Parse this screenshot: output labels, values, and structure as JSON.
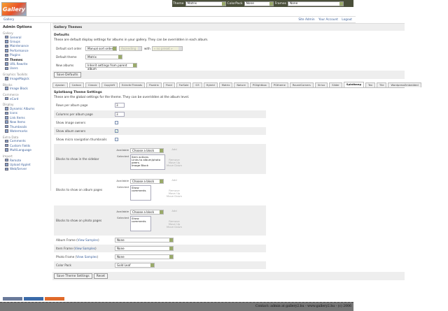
{
  "topbar": {
    "theme_label": "Theme",
    "theme_value": "Matrix",
    "colorpack_label": "ColorPack",
    "colorpack_value": "None",
    "frames_label": "Frames",
    "frames_value": "None"
  },
  "logo": "Gallery",
  "breadcrumb": {
    "home": "Gallery",
    "links": [
      "Site Admin",
      "Your Account",
      "Logout"
    ]
  },
  "sidebar": {
    "title": "Admin Options",
    "groups": [
      {
        "label": "Gallery",
        "items": [
          "General",
          "Groups",
          "Maintenance",
          "Performance",
          "Plugins",
          "Themes",
          "URL Rewrite",
          "Users"
        ]
      },
      {
        "label": "Graphics Toolkits",
        "items": [
          "ImageMagick"
        ]
      },
      {
        "label": "Blocks",
        "items": [
          "Image Block"
        ]
      },
      {
        "label": "Commerce",
        "items": [
          "eCard"
        ]
      },
      {
        "label": "Display",
        "items": [
          "Dynamic Albums",
          "Icons",
          "Link Items",
          "New Items",
          "Thumbnails",
          "Watermarks"
        ]
      },
      {
        "label": "Extra Data",
        "items": [
          "Comments",
          "Custom Fields",
          "MultiLanguage"
        ]
      },
      {
        "label": "Import",
        "items": [
          "Remote",
          "Upload Applet",
          "Web/Server"
        ]
      }
    ],
    "current": "Themes"
  },
  "main": {
    "title": "Gallery Themes",
    "defaults_heading": "Defaults",
    "defaults_desc": "These are default display settings for albums in your gallery. They can be overridden in each album.",
    "sort_label": "Default sort order",
    "sort_value": "Manual sort order",
    "sort_dir": "Ascending",
    "with_label": "with",
    "preset": "« no preset »",
    "theme_label": "Default theme",
    "theme_value": "Matrix",
    "new_label": "New albums",
    "new_value": "Inherit settings from parent album",
    "save_defaults": "Save Defaults",
    "tabs": [
      "Ajaxian",
      "Carbon",
      "Classic",
      "Copyleft",
      "EclecticThreads",
      "Floatrix",
      "Fluid",
      "ForSale",
      "G3",
      "Hybrid",
      "Matrix",
      "Nature",
      "PGlightbox",
      "PGtheme",
      "RoundCorners",
      "Siriux",
      "Slider",
      "Splatbang",
      "Tex",
      "Tile",
      "WordpressEmbedded"
    ],
    "active_tab": "Splatbang",
    "settings_heading": "Splatbang Theme Settings",
    "settings_desc": "These are the global settings for the theme. They can be overridden at the album level.",
    "rows_label": "Rows per album page",
    "rows_value": "3",
    "cols_label": "Columns per album page",
    "cols_value": "3",
    "image_owners_label": "Show image owners",
    "image_owners": false,
    "album_owners_label": "Show album owners",
    "album_owners": true,
    "micro_label": "Show micro navigation thumbnails",
    "micro": false,
    "blocks": [
      {
        "label": "Blocks to show in the sidebar",
        "selected": [
          "Item actions",
          "Links to album/photo peers",
          "Image Block"
        ]
      },
      {
        "label": "Blocks to show on album pages",
        "selected": [
          "Show comments"
        ]
      },
      {
        "label": "Blocks to show on photo pages",
        "selected": [
          "Show comments"
        ]
      }
    ],
    "available_label": "Available",
    "selected_label": "Selected",
    "choose": "Choose a block",
    "add": "Add",
    "remove": "Remove",
    "move_up": "Move Up",
    "move_down": "Move Down",
    "album_frame": "Album Frame",
    "item_frame": "Item Frame",
    "photo_frame": "Photo Frame",
    "view_samples": "View Samples",
    "frame_value": "None",
    "color_pack_label": "Color Pack",
    "color_pack_value": "Gold Leaf",
    "save_theme": "Save Theme Settings",
    "reset": "Reset"
  },
  "badges": [
    "W3C XHTML 1.0",
    "GALLERY 2",
    "HELP GALLERY"
  ],
  "footer": "Contact: admin at gallery2.hu - www.gallery2.hu - (c) 2006"
}
